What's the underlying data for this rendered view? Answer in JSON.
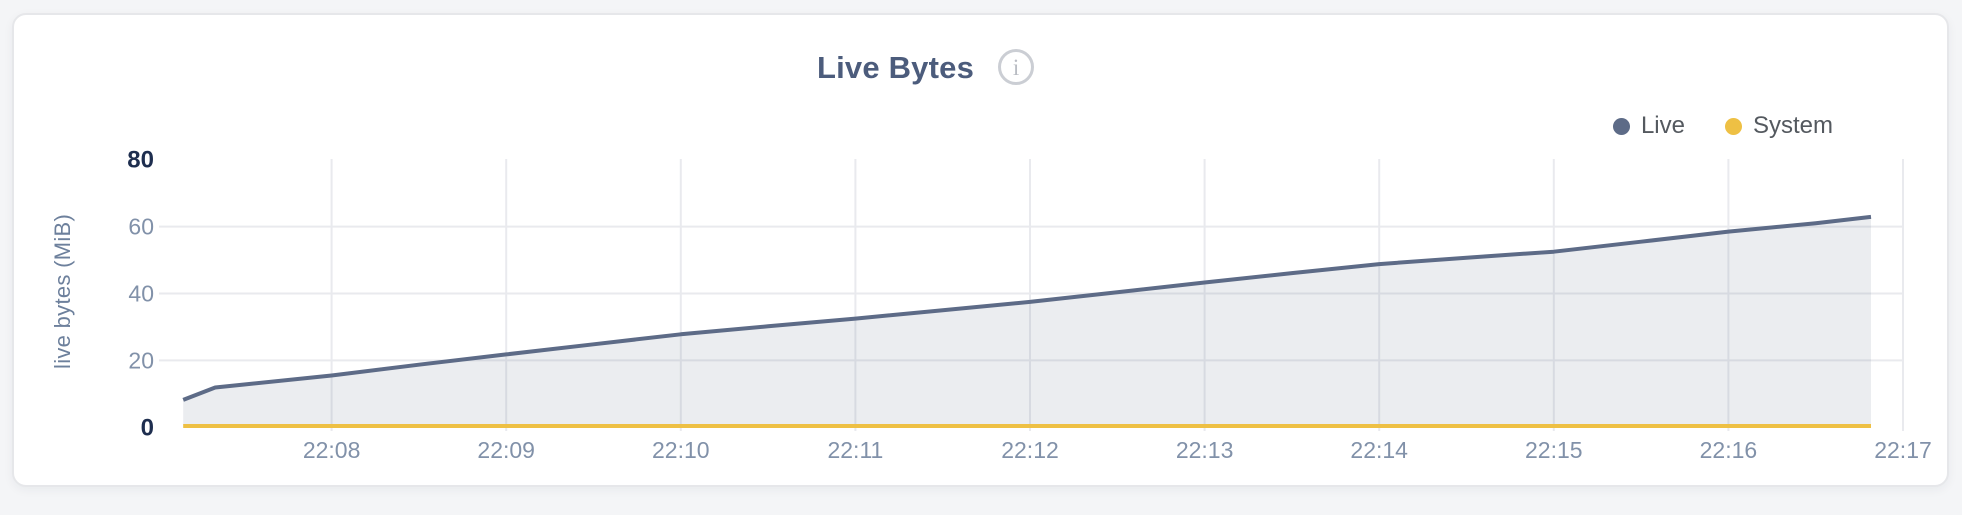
{
  "colors": {
    "page_bg": "#f4f5f7",
    "card_bg": "#ffffff",
    "grid": "#e9eaee",
    "title": "#4c5c7c",
    "axis_label": "#8191a9",
    "axis_label_emph": "#1e2e4f"
  },
  "icons": {
    "info_glyph": "i"
  },
  "chart_data": {
    "type": "area",
    "title": "Live Bytes",
    "ylabel": "live bytes (MiB)",
    "xlabel": "",
    "ylim": [
      0,
      80
    ],
    "y_ticks": [
      0,
      20,
      40,
      60,
      80
    ],
    "x_ticks": [
      "22:08",
      "22:09",
      "22:10",
      "22:11",
      "22:12",
      "22:13",
      "22:14",
      "22:15",
      "22:16",
      "22:17"
    ],
    "grid": "on",
    "legend_position": "top-right",
    "legend": [
      {
        "name": "Live",
        "color": "#5d6b87"
      },
      {
        "name": "System",
        "color": "#eec044"
      }
    ],
    "series": [
      {
        "name": "Live",
        "color": "#5d6b87",
        "fill": "rgba(93,107,135,0.12)",
        "points": [
          {
            "t": "22:07:09",
            "v": 8.2
          },
          {
            "t": "22:07:20",
            "v": 11.9
          },
          {
            "t": "22:07:30",
            "v": 12.8
          },
          {
            "t": "22:08:00",
            "v": 15.5
          },
          {
            "t": "22:08:30",
            "v": 18.7
          },
          {
            "t": "22:09:00",
            "v": 21.8
          },
          {
            "t": "22:09:30",
            "v": 24.8
          },
          {
            "t": "22:10:00",
            "v": 27.8
          },
          {
            "t": "22:10:30",
            "v": 30.2
          },
          {
            "t": "22:11:00",
            "v": 32.5
          },
          {
            "t": "22:11:30",
            "v": 35.0
          },
          {
            "t": "22:12:00",
            "v": 37.5
          },
          {
            "t": "22:12:30",
            "v": 40.4
          },
          {
            "t": "22:13:00",
            "v": 43.3
          },
          {
            "t": "22:13:30",
            "v": 46.1
          },
          {
            "t": "22:14:00",
            "v": 48.8
          },
          {
            "t": "22:14:30",
            "v": 50.7
          },
          {
            "t": "22:15:00",
            "v": 52.5
          },
          {
            "t": "22:15:30",
            "v": 55.5
          },
          {
            "t": "22:16:00",
            "v": 58.5
          },
          {
            "t": "22:16:30",
            "v": 61.0
          },
          {
            "t": "22:16:49",
            "v": 62.9
          }
        ]
      },
      {
        "name": "System",
        "color": "#eec044",
        "fill": "none",
        "points": [
          {
            "t": "22:07:09",
            "v": 0.4
          },
          {
            "t": "22:09:00",
            "v": 0.4
          },
          {
            "t": "22:11:00",
            "v": 0.4
          },
          {
            "t": "22:13:00",
            "v": 0.4
          },
          {
            "t": "22:15:00",
            "v": 0.4
          },
          {
            "t": "22:16:49",
            "v": 0.4
          }
        ]
      }
    ]
  }
}
